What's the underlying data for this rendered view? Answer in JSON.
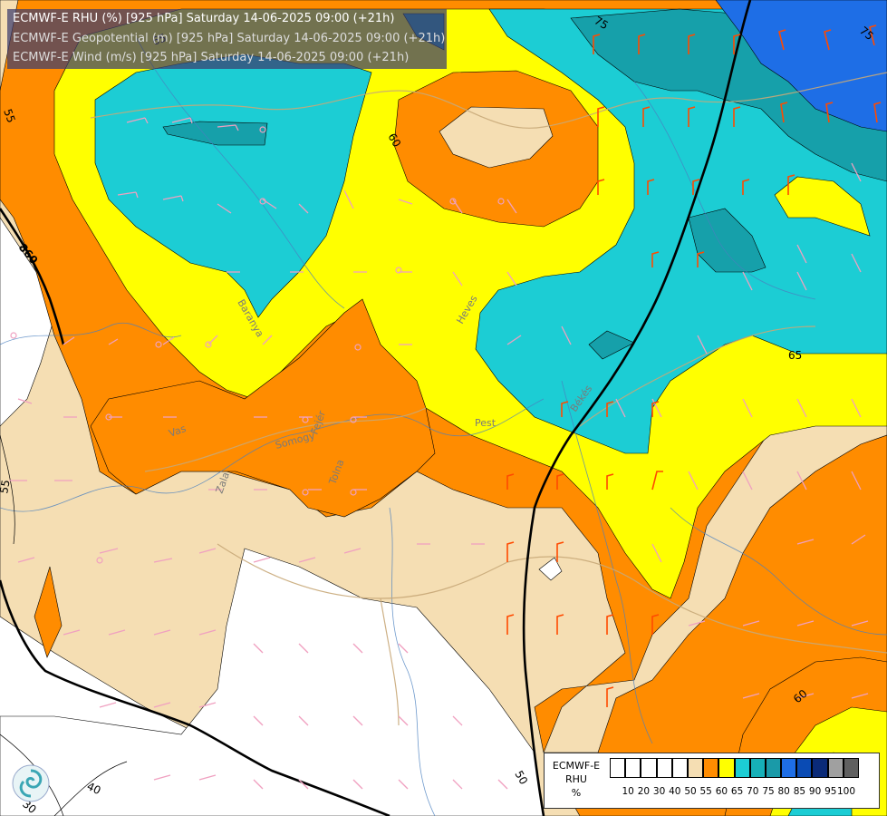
{
  "title": {
    "line1": "ECMWF-E RHU (%) [925 hPa] Saturday 14-06-2025 09:00 (+21h)",
    "line2": "ECMWF-E Geopotential (m) [925 hPa] Saturday 14-06-2025 09:00 (+21h)",
    "line3": "ECMWF-E Wind (m/s) [925 hPa] Saturday 14-06-2025 09:00 (+21h)"
  },
  "contour_labels": {
    "rh_75_top": "75",
    "rh_75_topright": "75",
    "rh_55_left": "55",
    "rh_60_center": "60",
    "rh_65_right": "65",
    "rh_60_lower_right": "60",
    "rh_50_bottom": "50",
    "rh_40_bottom": "40",
    "rh_30_bottom": "30",
    "rh_55_left2": "55",
    "geo_860": "860",
    "rh_65_upper": "65"
  },
  "places": {
    "heves": "Heves",
    "pest": "Pest",
    "vas": "Vas",
    "zala": "Zala",
    "tolna": "Tolna",
    "somogy": "Somogy",
    "fejer": "Fejér",
    "bekes": "Békés",
    "baranya": "Baranya"
  },
  "legend": {
    "title_line1": "ECMWF-E",
    "title_line2": "RHU",
    "title_line3": "%",
    "colors": [
      "#ffffff",
      "#ffffff",
      "#ffffff",
      "#ffffff",
      "#ffffff",
      "#f5deb3",
      "#ff8c00",
      "#ffff00",
      "#1ccdd4",
      "#16b0b8",
      "#1a9aa8",
      "#1e6ee6",
      "#0a4bb4",
      "#0a2a78",
      "#a0a0a0",
      "#606060"
    ],
    "ticks": [
      "10",
      "20",
      "30",
      "40",
      "50",
      "55",
      "60",
      "65",
      "70",
      "75",
      "80",
      "85",
      "90",
      "95",
      "100"
    ]
  },
  "colors": {
    "tan": "#f5deb3",
    "orange": "#ff8c00",
    "yellow": "#ffff00",
    "cyan": "#1ccdd4",
    "teal": "#16a0aa",
    "blue": "#1e6ee6"
  }
}
